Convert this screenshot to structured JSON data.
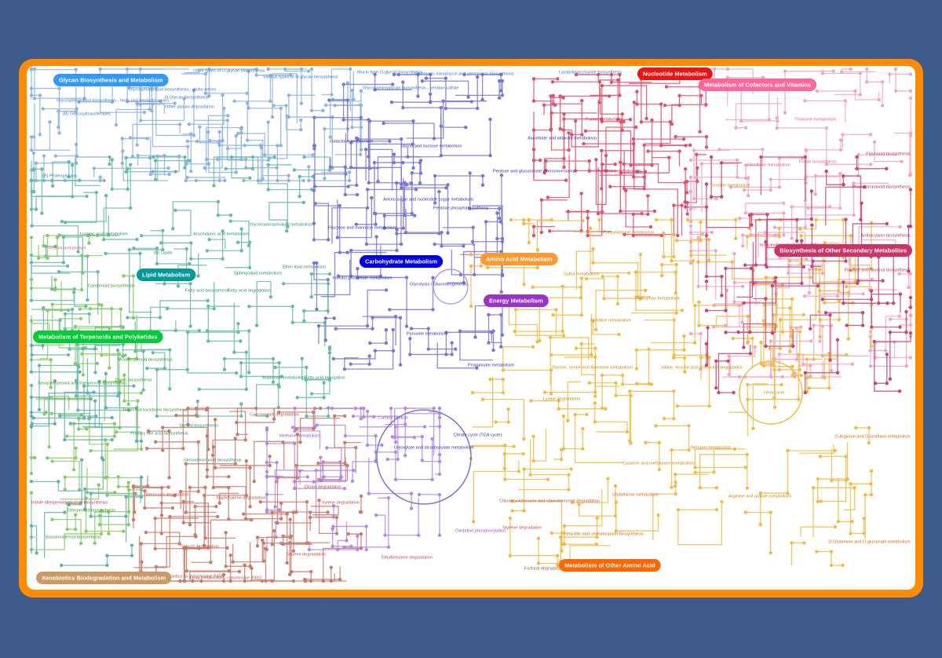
{
  "categories": [
    {
      "label": "Glycan Biosynthesis and Metabolism"
    },
    {
      "label": "Nucleotide Metabolism"
    },
    {
      "label": "Metabolism of Cofactors and Vitamins"
    },
    {
      "label": "Lipid Metabolism"
    },
    {
      "label": "Carbohydrate Metabolism"
    },
    {
      "label": "Amino Acid Metabolism"
    },
    {
      "label": "Energy Metabolism"
    },
    {
      "label": "Biosynthesis of Other Secondary Metabolites"
    },
    {
      "label": "Metabolism of Terpenoids and Polyketides"
    },
    {
      "label": "Metabolism of Other Amino Acid"
    },
    {
      "label": "Xenobiotics Biodegradation and Metabolism"
    }
  ],
  "pathways": [
    "Other types of O-glycan biosynthesis",
    "N-Glycan biosynthesis",
    "Glycosphingolipid biosynthesis - globo series",
    "Glycosphingolipid biosynthesis - lacto and neolacto series",
    "(B) Glycosyltransferases",
    "Other glycan degradation",
    "(B) Proteoglycans",
    "Various types of N-glycan biosynthesis",
    "Mucin type O-glycan biosynthesis",
    "Glycosaminoglycan biosynthesis - keratan sulfate",
    "Lipopolysaccharide biosynthesis",
    "Neomycin, kanamycin and gentamicin biosynthesis",
    "Linoleic acid metabolism",
    "Arachidonic acid metabolism",
    "Glycerophospholipid metabolism",
    "Fatty acid biosynthesis",
    "Fatty acid degradation",
    "Ether lipid metabolism",
    "Sphingolipid metabolism",
    "(B) Lipids",
    "Steroid biosynthesis",
    "Primary bile acid biosynthesis",
    "Steroid hormone biosynthesis",
    "Fatty acid elongation",
    "Butanoate metabolism",
    "Galactose metabolism",
    "Starch and sucrose metabolism",
    "Amino sugar and nucleotide sugar metabolism",
    "Pentose phosphate pathway",
    "Fructose and mannose metabolism",
    "Inositol phosphate metabolism",
    "Glycolysis / Gluconeogenesis",
    "Pyruvate metabolism",
    "Propanoate metabolism",
    "Citrate cycle (TCA cycle)",
    "Glyoxylate and dicarboxylate metabolism",
    "Ascorbate and aldarate metabolism",
    "Pentose and glucuronate interconversions",
    "Purine metabolism",
    "Pyrimidine metabolism",
    "Thiamine metabolism",
    "Riboflavin metabolism",
    "Folate biosynthesis",
    "Retinol metabolism",
    "Tyrosine metabolism",
    "Phenylalanine metabolism",
    "Tryptophan metabolism",
    "Glycine, serine and threonine metabolism",
    "Arginine and proline metabolism",
    "Lysine degradation",
    "Urea cycle",
    "Histidine metabolism",
    "Cysteine and methionine metabolism",
    "Valine, leucine and isoleucine degradation",
    "Oxidative phosphorylation",
    "Methane metabolism",
    "Carbon fixation",
    "Nitrogen metabolism",
    "Sulfur metabolism",
    "Naphthalene degradation",
    "Benzoate degradation",
    "Toluene degradation",
    "Steroid degradation",
    "Dioxin degradation",
    "Xylene degradation",
    "Styrene degradation",
    "Caprolactam degradation",
    "Chlorocyclohexane and chlorobenzene degradation",
    "Drug metabolism - cytochrome P450",
    "Metabolism of xenobiotics by cytochrome P450",
    "Ethylbenzene degradation",
    "Furfural degradation",
    "Carotenoid biosynthesis",
    "Monoterpenoid biosynthesis",
    "Sesquiterpenoid and triterpenoid biosynthesis",
    "Zeatin biosynthesis",
    "Insect hormone biosynthesis",
    "Terpenoid backbone biosynthesis",
    "Indole diterpenoid alkaloid biosynthesis",
    "Brassinosteroid biosynthesis",
    "Diterpenoid biosynthesis",
    "Phenylpropanoid biosynthesis",
    "Flavonoid biosynthesis",
    "Isoquinoline alkaloid biosynthesis",
    "Anthocyanin biosynthesis",
    "Flavone and flavonol biosynthesis",
    "Penicillin and cephalosporin biosynthesis",
    "D-Glutamine and D-glutamate metabolism",
    "D-Arginine and D-ornithine metabolism",
    "Glutathione metabolism"
  ]
}
